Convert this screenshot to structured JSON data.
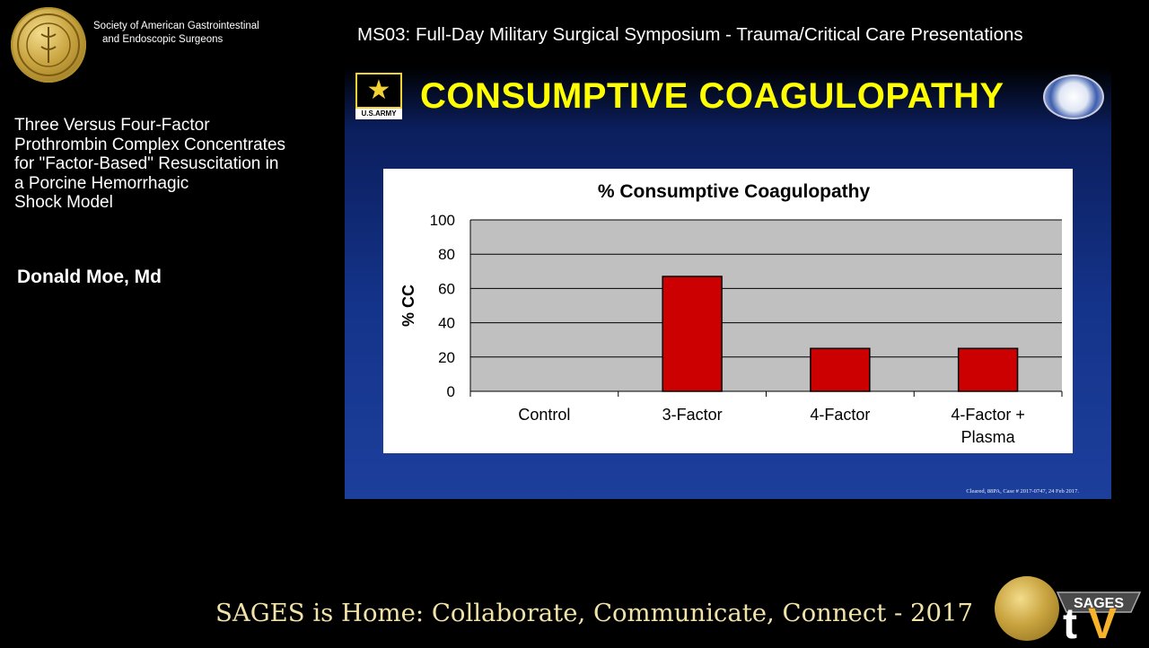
{
  "society": {
    "line1": "Society of American Gastrointestinal",
    "line2": "and Endoscopic Surgeons"
  },
  "header": {
    "title": "MS03: Full-Day Military Surgical Symposium - Trauma/Critical Care Presentations"
  },
  "talk": {
    "lines": [
      "Three Versus Four-Factor",
      "Prothrombin Complex Concentrates",
      "for \"Factor-Based\" Resuscitation in",
      "a Porcine Hemorrhagic",
      "Shock Model"
    ],
    "speaker": "Donald Moe, Md"
  },
  "slide": {
    "title": "CONSUMPTIVE COAGULOPATHY",
    "army_label": "U.S.ARMY",
    "clearance": "Cleared, 88PA, Case # 2017-0747, 24 Feb 2017."
  },
  "footer": {
    "text": "SAGES is Home: Collaborate, Communicate, Connect - 2017",
    "badge": "SAGES",
    "tv_t": "t",
    "tv_v": "V"
  },
  "colors": {
    "bar": "#cc0000",
    "plot_bg": "#c0c0c0",
    "title_yellow": "#ffff00",
    "footer_gold": "#f1e3a8"
  },
  "chart_data": {
    "type": "bar",
    "title": "% Consumptive Coagulopathy",
    "xlabel": "",
    "ylabel": "% CC",
    "categories": [
      [
        "Control"
      ],
      [
        "3-Factor"
      ],
      [
        "4-Factor"
      ],
      [
        "4-Factor +",
        "Plasma"
      ]
    ],
    "values": [
      0,
      67,
      25,
      25
    ],
    "ylim": [
      0,
      100
    ],
    "yticks": [
      0,
      20,
      40,
      60,
      80,
      100
    ],
    "grid": true
  }
}
